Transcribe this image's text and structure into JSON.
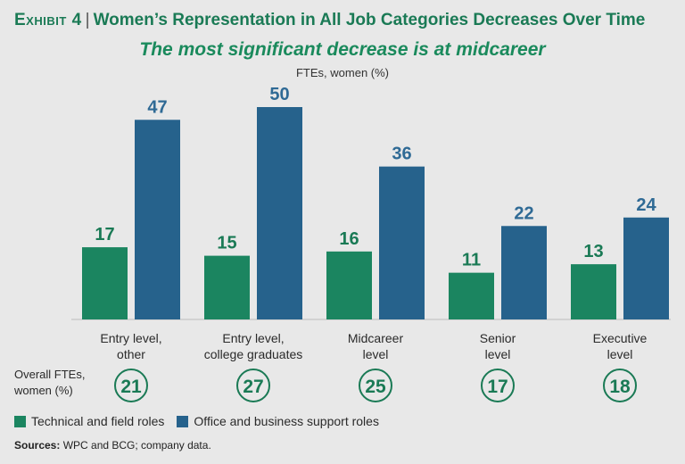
{
  "header": {
    "exhibit_label": "Exhibit 4",
    "separator": "|",
    "title": "Women’s Representation in All Job Categories Decreases Over Time"
  },
  "subtitle": "The most significant decrease is at midcareer",
  "sources": {
    "label": "Sources:",
    "text": "WPC and BCG; company data."
  },
  "colors": {
    "technical": "#1b8560",
    "office": "#26628c",
    "title": "#1a7a55",
    "background": "#e8e8e8"
  },
  "chart_data": {
    "type": "bar",
    "title": "Women’s Representation in All Job Categories Decreases Over Time",
    "subtitle": "The most significant decrease is at midcareer",
    "ylabel": "FTEs, women (%)",
    "xlabel": "",
    "ylim": [
      0,
      50
    ],
    "grid": false,
    "legend_position": "bottom-left",
    "categories": [
      [
        "Entry level,",
        "other"
      ],
      [
        "Entry level,",
        "college graduates"
      ],
      [
        "Midcareer",
        "level"
      ],
      [
        "Senior",
        "level"
      ],
      [
        "Executive",
        "level"
      ]
    ],
    "series": [
      {
        "name": "Technical and field roles",
        "color": "#1b8560",
        "values": [
          17,
          15,
          16,
          11,
          13
        ]
      },
      {
        "name": "Office and business support roles",
        "color": "#26628c",
        "values": [
          47,
          50,
          36,
          22,
          24
        ]
      }
    ],
    "overall": {
      "label": [
        "Overall FTEs,",
        "women (%)"
      ],
      "values": [
        21,
        27,
        25,
        17,
        18
      ]
    }
  }
}
